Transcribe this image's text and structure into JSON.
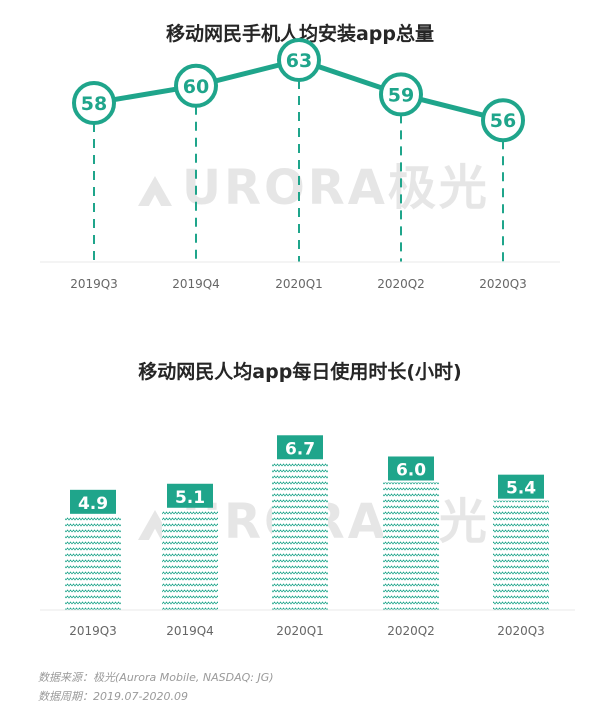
{
  "watermark": {
    "brand": "URORA",
    "cn": "极光"
  },
  "colors": {
    "accent": "#1fa58b",
    "line": "#1fa58b",
    "axis": "#e8e8e8",
    "tick": "#666666"
  },
  "chart_data": [
    {
      "type": "line",
      "title": "移动网民手机人均安装app总量",
      "categories": [
        "2019Q3",
        "2019Q4",
        "2020Q1",
        "2020Q2",
        "2020Q3"
      ],
      "values": [
        58,
        60,
        63,
        59,
        56
      ],
      "data_labels": [
        "58",
        "60",
        "63",
        "59",
        "56"
      ],
      "xlabel": "",
      "ylabel": "",
      "grid": false
    },
    {
      "type": "bar",
      "title": "移动网民人均app每日使用时长(小时)",
      "categories": [
        "2019Q3",
        "2019Q4",
        "2020Q1",
        "2020Q2",
        "2020Q3"
      ],
      "values": [
        4.9,
        5.1,
        6.7,
        6.0,
        5.4
      ],
      "data_labels": [
        "4.9",
        "5.1",
        "6.7",
        "6.0",
        "5.4"
      ],
      "xlabel": "",
      "ylabel": "",
      "grid": false
    }
  ],
  "footer": {
    "source": "数据来源：极光(Aurora Mobile, NASDAQ: JG)",
    "period": "数据周期：2019.07-2020.09"
  }
}
